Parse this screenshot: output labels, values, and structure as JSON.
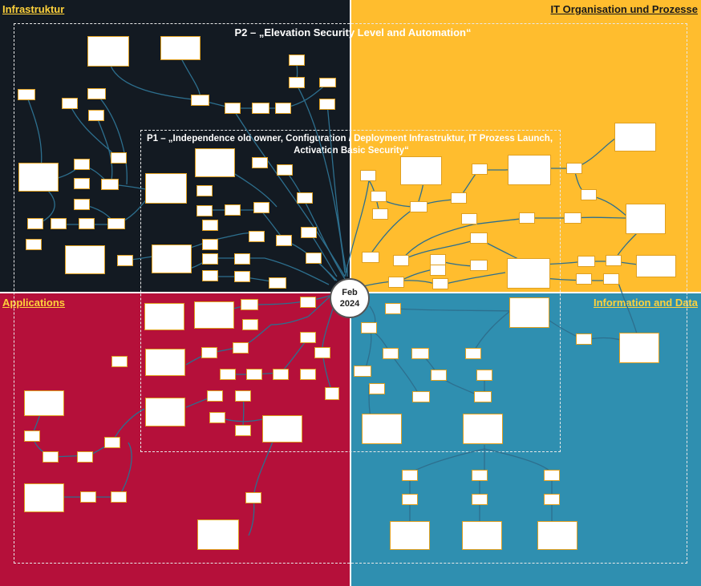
{
  "quadrants": {
    "infrastruktur": {
      "label": "Infrastruktur",
      "color": "#131a22"
    },
    "it_organisation": {
      "label": "IT Organisation und Prozesse",
      "color": "#ffbd2e"
    },
    "applications": {
      "label": "Applications",
      "color": "#b5103a"
    },
    "information_data": {
      "label": "Information and Data",
      "color": "#2f8fb0"
    }
  },
  "phases": {
    "p2": {
      "title": "P2 – „Elevation Security Level and Automation“"
    },
    "p1": {
      "title_line1": "P1 – „Independence old owner, Configuration / Deployment Infrastruktur, IT Prozess Launch,",
      "title_line2": "Activation Basic Security“"
    }
  },
  "center": {
    "month": "Feb",
    "year": "2024"
  },
  "colors": {
    "link": "#2d6f8e",
    "node_border": "#e0a020",
    "dashed": "#e8e8e8"
  }
}
